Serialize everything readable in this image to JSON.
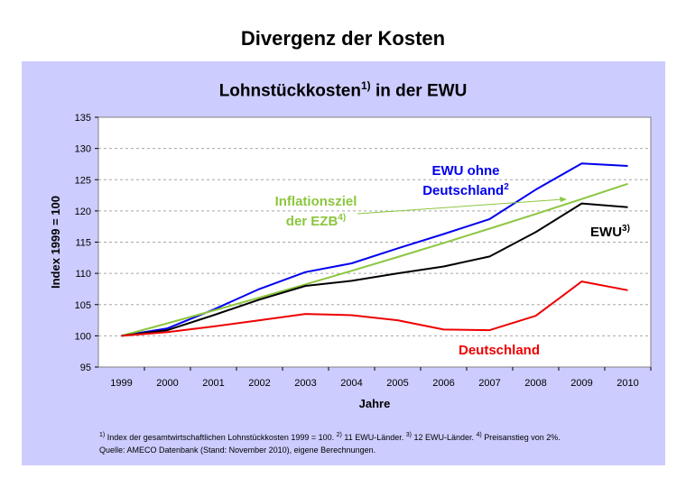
{
  "slide_title": "Divergenz der Kosten",
  "chart_data": {
    "type": "line",
    "title": "Lohnstückkosten",
    "title_sup": "1)",
    "title_suffix": " in der EWU",
    "xlabel": "Jahre",
    "ylabel": "Index 1999 = 100",
    "ylim": [
      95,
      135
    ],
    "yticks": [
      95,
      100,
      105,
      110,
      115,
      120,
      125,
      130,
      135
    ],
    "categories": [
      "1999",
      "2000",
      "2001",
      "2002",
      "2003",
      "2004",
      "2005",
      "2006",
      "2007",
      "2008",
      "2009",
      "2010"
    ],
    "grid": true,
    "series": [
      {
        "key": "ewu-ohne",
        "name_line1": "EWU ohne",
        "name_line2": "Deutschland",
        "sup": "2",
        "color": "#0000ee",
        "values": [
          100,
          101.2,
          104.2,
          107.5,
          110.2,
          111.6,
          114.0,
          116.3,
          118.7,
          123.4,
          127.6,
          127.2
        ]
      },
      {
        "key": "inflationsziel",
        "name_line1": "Inflationsziel",
        "name_line2": "der EZB",
        "sup": "4)",
        "color": "#8cc63f",
        "values": [
          100,
          102.0,
          104.04,
          106.12,
          108.24,
          110.41,
          112.62,
          114.87,
          117.17,
          119.51,
          121.9,
          124.34
        ]
      },
      {
        "key": "ewu",
        "name_line1": "EWU",
        "name_line2": "",
        "sup": "3)",
        "color": "#000000",
        "values": [
          100,
          100.9,
          103.3,
          105.8,
          108.0,
          108.8,
          110.0,
          111.1,
          112.7,
          116.6,
          121.2,
          120.6
        ]
      },
      {
        "key": "deutschland",
        "name_line1": "Deutschland",
        "name_line2": "",
        "sup": "",
        "color": "#ee0000",
        "values": [
          100,
          100.6,
          101.5,
          102.5,
          103.5,
          103.3,
          102.5,
          101.0,
          100.9,
          103.2,
          108.7,
          107.3
        ]
      }
    ]
  },
  "footnote": {
    "line1_parts": [
      {
        "sup": "1)",
        "text": " Index der gesamtwirtschaftlichen Lohnstückkosten 1999 = 100. "
      },
      {
        "sup": "2)",
        "text": " 11 EWU-Länder. "
      },
      {
        "sup": "3)",
        "text": " 12 EWU-Länder. "
      },
      {
        "sup": "4)",
        "text": " Preisanstieg von 2%."
      }
    ],
    "line2": "Quelle: AMECO Datenbank (Stand: November 2010), eigene Berechnungen."
  }
}
